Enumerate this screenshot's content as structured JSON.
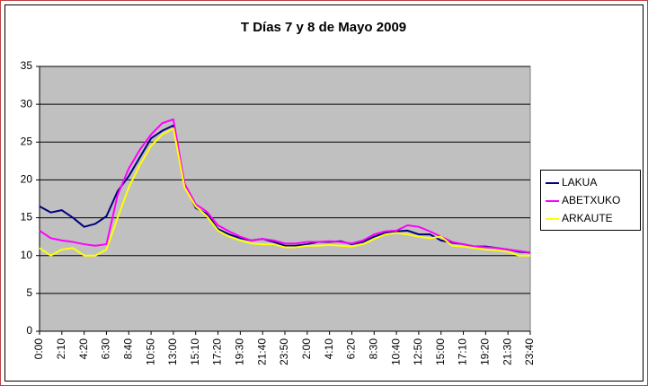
{
  "chart_data": {
    "type": "line",
    "title": "T Días 7 y 8 de Mayo 2009",
    "categories": [
      "0:00",
      null,
      "2:10",
      null,
      "4:20",
      null,
      "6:30",
      null,
      "8:40",
      null,
      "10:50",
      null,
      "13:00",
      null,
      "15:10",
      null,
      "17:20",
      null,
      "19:30",
      null,
      "21:40",
      null,
      "23:50",
      null,
      "2:00",
      null,
      "4:10",
      null,
      "6:20",
      null,
      "8:30",
      null,
      "10:40",
      null,
      "12:50",
      null,
      "15:00",
      null,
      "17:10",
      null,
      "19:20",
      null,
      "21:30",
      null,
      "23:40"
    ],
    "series": [
      {
        "name": "LAKUA",
        "color": "#000080",
        "values": [
          16.5,
          15.7,
          16,
          15,
          13.8,
          14.2,
          15.2,
          18.5,
          20.5,
          23,
          25.5,
          26.5,
          27.2,
          19.5,
          16.3,
          15.5,
          13.5,
          12.8,
          12.3,
          12,
          12.2,
          11.8,
          11.3,
          11.3,
          11.5,
          11.8,
          11.8,
          11.9,
          11.5,
          11.8,
          12.5,
          13,
          13.2,
          13.3,
          12.8,
          12.8,
          12,
          11.7,
          11.5,
          11.2,
          11.2,
          11,
          10.8,
          10.5,
          10.4
        ]
      },
      {
        "name": "ABETXUKO",
        "color": "#ff00ff",
        "values": [
          13.3,
          12.3,
          12,
          11.8,
          11.5,
          11.3,
          11.5,
          18,
          21.5,
          24,
          26,
          27.5,
          28,
          19.5,
          16.8,
          15.8,
          14,
          13.2,
          12.5,
          12,
          12.2,
          12,
          11.6,
          11.6,
          11.8,
          11.8,
          11.9,
          11.8,
          11.6,
          12,
          12.8,
          13.2,
          13.3,
          14,
          13.8,
          13.2,
          12.5,
          11.8,
          11.5,
          11.2,
          11.1,
          11,
          10.8,
          10.6,
          10.4
        ]
      },
      {
        "name": "ARKAUTE",
        "color": "#ffff00",
        "values": [
          11,
          10,
          10.8,
          11,
          10,
          10,
          10.8,
          15,
          19,
          22,
          24.5,
          26,
          26.8,
          19,
          16.5,
          15.2,
          13.3,
          12.5,
          12,
          11.6,
          11.5,
          11.5,
          11.1,
          11.1,
          11.3,
          11.3,
          11.4,
          11.3,
          11.2,
          11.5,
          12.2,
          12.8,
          13,
          12.8,
          12.5,
          12.3,
          12.5,
          11.3,
          11.2,
          11,
          10.8,
          10.7,
          10.5,
          10,
          10
        ]
      }
    ],
    "ylim": [
      0,
      35
    ],
    "yticks": [
      0,
      5,
      10,
      15,
      20,
      25,
      30,
      35
    ],
    "grid": true,
    "legend": "right"
  }
}
